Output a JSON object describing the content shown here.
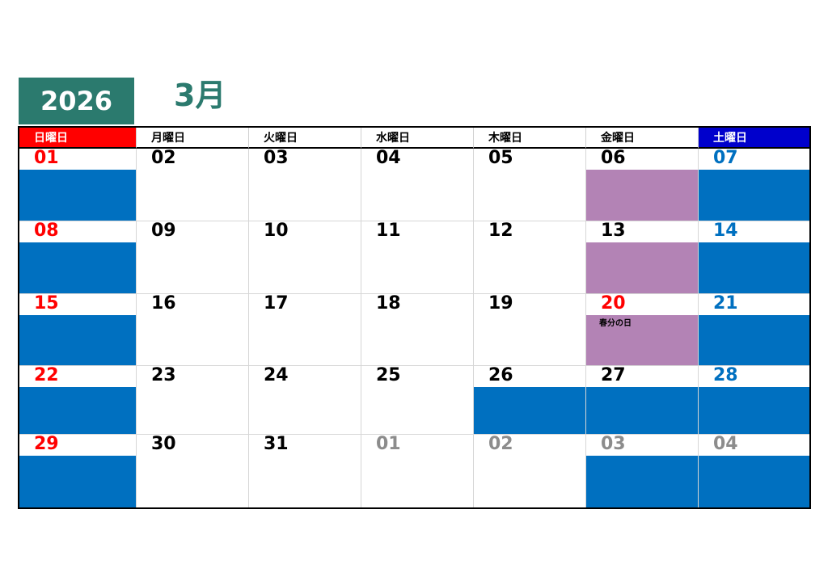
{
  "header": {
    "year": "2026",
    "month": "3月"
  },
  "colors": {
    "accent": "#2b7a6e",
    "sunday": "#ff0000",
    "saturday_header": "#0000cc",
    "fill_blue": "#0070c0",
    "fill_purple": "#b383b5",
    "other_month": "#8c8c8c"
  },
  "weekdays": [
    {
      "label": "日曜日",
      "style": "sun"
    },
    {
      "label": "月曜日",
      "style": ""
    },
    {
      "label": "火曜日",
      "style": ""
    },
    {
      "label": "水曜日",
      "style": ""
    },
    {
      "label": "木曜日",
      "style": ""
    },
    {
      "label": "金曜日",
      "style": ""
    },
    {
      "label": "土曜日",
      "style": "sat"
    }
  ],
  "weeks": [
    [
      {
        "day": "01",
        "color": "red",
        "fill": "blue"
      },
      {
        "day": "02",
        "color": "",
        "fill": ""
      },
      {
        "day": "03",
        "color": "",
        "fill": ""
      },
      {
        "day": "04",
        "color": "",
        "fill": ""
      },
      {
        "day": "05",
        "color": "",
        "fill": ""
      },
      {
        "day": "06",
        "color": "",
        "fill": "purple"
      },
      {
        "day": "07",
        "color": "blue",
        "fill": "blue"
      }
    ],
    [
      {
        "day": "08",
        "color": "red",
        "fill": "blue"
      },
      {
        "day": "09",
        "color": "",
        "fill": ""
      },
      {
        "day": "10",
        "color": "",
        "fill": ""
      },
      {
        "day": "11",
        "color": "",
        "fill": ""
      },
      {
        "day": "12",
        "color": "",
        "fill": ""
      },
      {
        "day": "13",
        "color": "",
        "fill": "purple"
      },
      {
        "day": "14",
        "color": "blue",
        "fill": "blue"
      }
    ],
    [
      {
        "day": "15",
        "color": "red",
        "fill": "blue"
      },
      {
        "day": "16",
        "color": "",
        "fill": ""
      },
      {
        "day": "17",
        "color": "",
        "fill": ""
      },
      {
        "day": "18",
        "color": "",
        "fill": ""
      },
      {
        "day": "19",
        "color": "",
        "fill": ""
      },
      {
        "day": "20",
        "color": "red",
        "fill": "purple",
        "note": "春分の日"
      },
      {
        "day": "21",
        "color": "blue",
        "fill": "blue"
      }
    ],
    [
      {
        "day": "22",
        "color": "red",
        "fill": "blue"
      },
      {
        "day": "23",
        "color": "",
        "fill": ""
      },
      {
        "day": "24",
        "color": "",
        "fill": ""
      },
      {
        "day": "25",
        "color": "",
        "fill": ""
      },
      {
        "day": "26",
        "color": "",
        "fill": "blue"
      },
      {
        "day": "27",
        "color": "",
        "fill": "blue"
      },
      {
        "day": "28",
        "color": "blue",
        "fill": "blue"
      }
    ],
    [
      {
        "day": "29",
        "color": "red",
        "fill": "blue"
      },
      {
        "day": "30",
        "color": "",
        "fill": ""
      },
      {
        "day": "31",
        "color": "",
        "fill": ""
      },
      {
        "day": "01",
        "color": "gray",
        "fill": ""
      },
      {
        "day": "02",
        "color": "gray",
        "fill": ""
      },
      {
        "day": "03",
        "color": "gray",
        "fill": "blue"
      },
      {
        "day": "04",
        "color": "gray",
        "fill": "blue"
      }
    ]
  ]
}
